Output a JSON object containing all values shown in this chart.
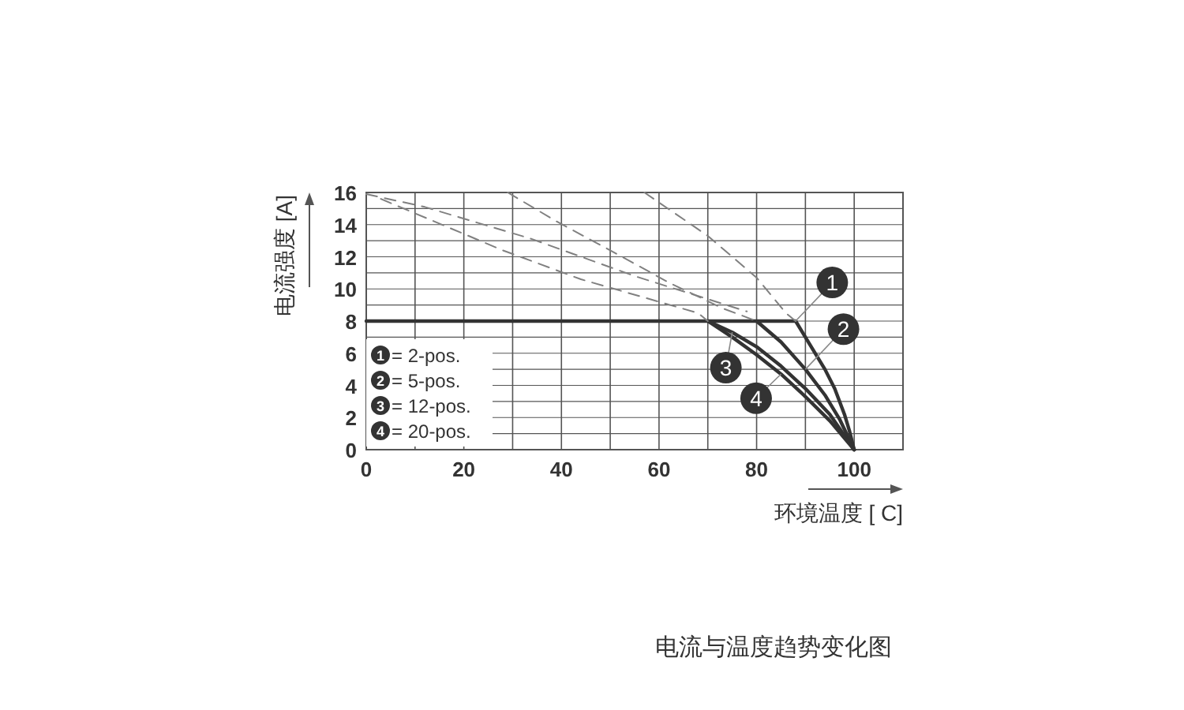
{
  "chart_data": {
    "type": "line",
    "xlabel": "环境温度 [ C]",
    "ylabel": "电流强度 [A]",
    "xlim": [
      0,
      110
    ],
    "ylim": [
      0,
      16
    ],
    "xticks": [
      0,
      {
        "value": 10,
        "label": null
      },
      20,
      {
        "value": 30,
        "label": null
      },
      40,
      {
        "value": 50,
        "label": null
      },
      60,
      {
        "value": 70,
        "label": null
      },
      80,
      {
        "value": 90,
        "label": null
      },
      100,
      {
        "value": 110,
        "label": null
      }
    ],
    "yticks": [
      0,
      {
        "value": 1,
        "label": null
      },
      2,
      {
        "value": 3,
        "label": null
      },
      4,
      {
        "value": 5,
        "label": null
      },
      6,
      {
        "value": 7,
        "label": null
      },
      8,
      {
        "value": 9,
        "label": null
      },
      10,
      {
        "value": 11,
        "label": null
      },
      12,
      {
        "value": 13,
        "label": null
      },
      14,
      {
        "value": 15,
        "label": null
      },
      16
    ],
    "grid": true,
    "legend": "bottom left",
    "line_style": "solid",
    "marker": "none",
    "series": [
      {
        "name": "= 2-pos.",
        "color": "#333333",
        "x": [
          0,
          88,
          91,
          94,
          96,
          98,
          99,
          100
        ],
        "values": [
          8,
          8,
          6.5,
          5,
          3.8,
          2.2,
          1.2,
          0
        ]
      },
      {
        "name": "= 5-pos.",
        "color": "#333333",
        "x": [
          80,
          85,
          90,
          94,
          97,
          100
        ],
        "values": [
          8,
          6.7,
          5,
          3.4,
          1.9,
          0
        ]
      },
      {
        "name": "= 12-pos.",
        "color": "#333333",
        "x": [
          70,
          75,
          80,
          85,
          90,
          95,
          100
        ],
        "values": [
          8,
          7.3,
          6.4,
          5.2,
          3.8,
          2.2,
          0
        ]
      },
      {
        "name": "= 20-pos.",
        "color": "#333333",
        "x": [
          70,
          75,
          80,
          85,
          90,
          95,
          100
        ],
        "values": [
          8,
          7,
          5.9,
          4.7,
          3.3,
          1.8,
          0
        ]
      },
      {
        "color": "#808080",
        "line_style": "dashed",
        "x": [
          57,
          70,
          80,
          86,
          88
        ],
        "values": [
          16,
          13.3,
          10.7,
          8.5,
          8
        ]
      },
      {
        "color": "#808080",
        "line_style": "dashed",
        "x": [
          29,
          39,
          50,
          62,
          73,
          80
        ],
        "values": [
          16,
          14.2,
          12.4,
          10.4,
          8.8,
          8
        ]
      },
      {
        "color": "#808080",
        "line_style": "dashed",
        "x": [
          0,
          12,
          34,
          55,
          78
        ],
        "values": [
          15.9,
          15.1,
          13.1,
          10.8,
          8.6
        ]
      },
      {
        "color": "#808080",
        "line_style": "dashed",
        "x": [
          3,
          28,
          44,
          68,
          70
        ],
        "values": [
          15.6,
          12.4,
          10.6,
          8.5,
          8
        ]
      }
    ],
    "annotations": [
      {
        "text": "1",
        "x": 95.5,
        "y": 10.4
      },
      {
        "text": "2",
        "x": 97.8,
        "y": 7.5
      },
      {
        "text": "3",
        "x": 73.7,
        "y": 5.1
      },
      {
        "text": "4",
        "x": 79.9,
        "y": 3.2
      },
      "电流与温度趋势变化图"
    ]
  }
}
